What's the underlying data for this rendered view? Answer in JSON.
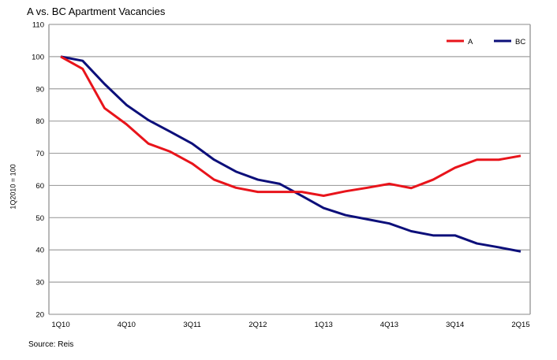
{
  "chart_data": {
    "type": "line",
    "title": "A vs. BC Apartment Vacancies",
    "xlabel": "",
    "ylabel": "1Q2010 = 100",
    "source": "Source:  Reis",
    "ylim": [
      20,
      110
    ],
    "yticks": [
      20,
      30,
      40,
      50,
      60,
      70,
      80,
      90,
      100,
      110
    ],
    "grid": true,
    "legend_position": "top-right",
    "x": [
      "1Q10",
      "2Q10",
      "3Q10",
      "4Q10",
      "1Q11",
      "2Q11",
      "3Q11",
      "4Q11",
      "1Q12",
      "2Q12",
      "3Q12",
      "4Q12",
      "1Q13",
      "2Q13",
      "3Q13",
      "4Q13",
      "1Q14",
      "2Q14",
      "3Q14",
      "4Q14",
      "1Q15",
      "2Q15"
    ],
    "xtick_labels": [
      "1Q10",
      "4Q10",
      "3Q11",
      "2Q12",
      "1Q13",
      "4Q13",
      "3Q14",
      "2Q15"
    ],
    "series": [
      {
        "name": "A",
        "color": "#e8141b",
        "values": [
          100,
          96.2,
          84,
          79,
          73,
          70.5,
          66.8,
          61.8,
          59.3,
          58,
          58,
          58,
          56.8,
          58.2,
          59.3,
          60.5,
          59.2,
          61.8,
          65.5,
          68,
          68,
          69.2
        ]
      },
      {
        "name": "BC",
        "color": "#0c0f7a",
        "values": [
          100,
          98.7,
          91.5,
          85,
          80.3,
          76.7,
          73,
          68,
          64.3,
          61.8,
          60.5,
          56.8,
          53,
          50.8,
          49.5,
          48.2,
          45.8,
          44.5,
          44.5,
          42,
          40.8,
          39.5
        ]
      }
    ]
  }
}
